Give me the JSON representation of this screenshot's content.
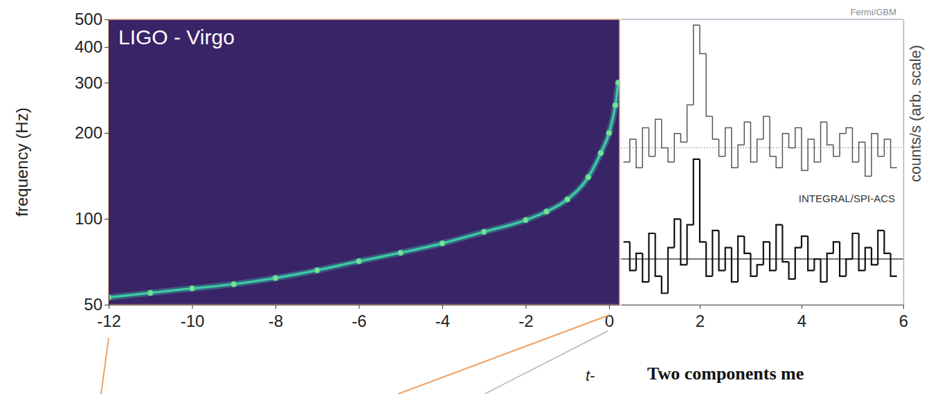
{
  "chart_data": [
    {
      "type": "line",
      "title": "LIGO - Virgo",
      "x_label": "t-",
      "y_label": "frequency (Hz)",
      "x": [
        -12,
        -11,
        -10,
        -9,
        -8,
        -7,
        -6,
        -5,
        -4,
        -3,
        -2,
        -1.5,
        -1,
        -0.5,
        -0.2,
        0,
        0.15,
        0.22
      ],
      "series": [
        {
          "color": "#3cc9a7",
          "marker": "circle",
          "line_style": "solid",
          "values": [
            53,
            55,
            57,
            59,
            62,
            66,
            71,
            76,
            82,
            90,
            99,
            106,
            117,
            140,
            170,
            200,
            250,
            300
          ]
        }
      ],
      "xlim": [
        -12,
        0.25
      ],
      "xticks": [
        -12,
        -10,
        -8,
        -6,
        -4,
        -2,
        0
      ],
      "ylim": [
        50,
        500
      ],
      "yticks": [
        50,
        100,
        200,
        300,
        400,
        500
      ],
      "log": "y",
      "grid": false
    },
    {
      "type": "histogram",
      "y_label": "counts/s (arb. scale)",
      "bins": [
        0.5,
        0.625,
        0.75,
        0.875,
        1,
        1.125,
        1.25,
        1.375,
        1.5,
        1.625,
        1.75,
        1.875,
        2,
        2.125,
        2.25,
        2.375,
        2.5,
        2.625,
        2.75,
        2.875,
        3,
        3.125,
        3.25,
        3.375,
        3.5,
        3.625,
        3.75,
        3.875,
        4,
        4.125,
        4.25,
        4.375,
        4.5,
        4.625,
        4.75,
        4.875,
        5,
        5.125,
        5.25,
        5.375,
        5.5,
        5.625,
        5.75,
        5.875
      ],
      "series": [
        {
          "name": "Fermi/GBM",
          "color": "#555555",
          "line_style": "solid",
          "baseline": 55,
          "values": [
            50,
            58,
            48,
            62,
            52,
            65,
            55,
            50,
            60,
            57,
            70,
            98,
            88,
            66,
            58,
            52,
            62,
            48,
            56,
            64,
            50,
            58,
            66,
            52,
            48,
            60,
            55,
            62,
            47,
            58,
            50,
            64,
            56,
            52,
            60,
            62,
            50,
            57,
            45,
            60,
            52,
            58,
            48
          ]
        },
        {
          "name": "INTEGRAL/SPI-ACS",
          "color": "#111111",
          "line_style": "solid",
          "baseline": 16,
          "values": [
            22,
            12,
            18,
            8,
            25,
            10,
            4,
            20,
            30,
            14,
            28,
            51,
            22,
            10,
            26,
            12,
            20,
            8,
            24,
            18,
            10,
            14,
            22,
            12,
            28,
            15,
            9,
            20,
            24,
            12,
            16,
            8,
            18,
            22,
            10,
            16,
            25,
            12,
            20,
            14,
            26,
            18,
            10
          ]
        }
      ],
      "xlim": [
        0.45,
        6
      ],
      "xticks": [
        2,
        4,
        6
      ],
      "ylim": [
        0,
        100
      ],
      "tick_labels": "x",
      "annotations": [
        "Two components me"
      ]
    }
  ]
}
